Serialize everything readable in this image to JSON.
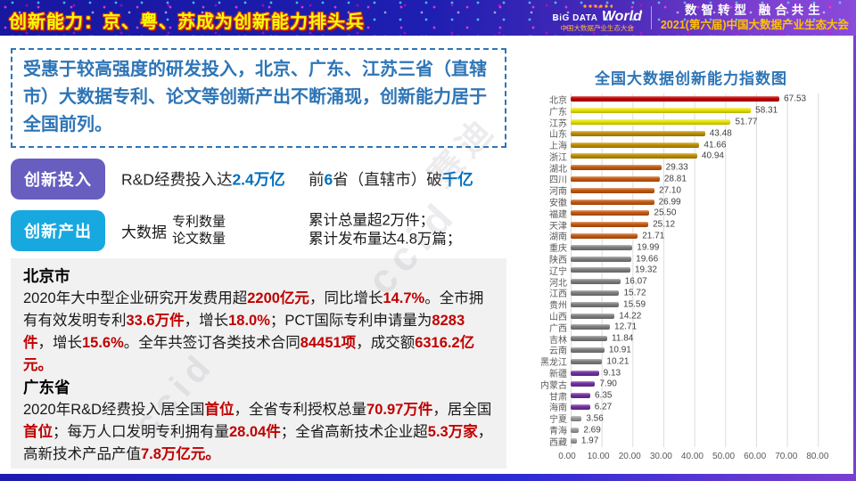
{
  "header": {
    "title": "创新能力：京、粤、苏成为创新能力排头兵",
    "logo": {
      "big": "BiG DATA",
      "world": "World",
      "sub": "中国大数据产业生态大会"
    },
    "slogan": "数智转型 融合共生",
    "event": "2021(第六届)中国大数据产业生态大会"
  },
  "intro": {
    "text": "受惠于较高强度的研发投入，北京、广东、江苏三省（直辖市）大数据专利、论文等创新产出不断涌现，创新能力居于全国前列。"
  },
  "investment": {
    "label": "创新投入",
    "line1": [
      {
        "t": "R&D经费投入达"
      },
      {
        "t": "2.4万亿",
        "c": "blue"
      }
    ],
    "line2": [
      {
        "t": "前"
      },
      {
        "t": "6",
        "c": "blue"
      },
      {
        "t": "省（直辖市）破"
      },
      {
        "t": "千亿",
        "c": "blue"
      }
    ]
  },
  "output": {
    "label": "创新产出",
    "prefix": "大数据",
    "items": [
      "专利数量",
      "论文数量"
    ],
    "results": [
      "累计总量超2万件；",
      "累计发布量达4.8万篇；"
    ]
  },
  "details": {
    "beijing": {
      "title": "北京市",
      "segments": [
        {
          "t": "2020年大中型企业研究开发费用超"
        },
        {
          "t": "2200亿元",
          "c": "red"
        },
        {
          "t": "，同比增长"
        },
        {
          "t": "14.7%",
          "c": "red"
        },
        {
          "t": "。全市拥有有效发明专利"
        },
        {
          "t": "33.6万件",
          "c": "red"
        },
        {
          "t": "，增长"
        },
        {
          "t": "18.0%",
          "c": "red"
        },
        {
          "t": "；PCT国际专利申请量为"
        },
        {
          "t": "8283件",
          "c": "red"
        },
        {
          "t": "，增长"
        },
        {
          "t": "15.6%",
          "c": "red"
        },
        {
          "t": "。全年共签订各类技术合同"
        },
        {
          "t": "84451项",
          "c": "red"
        },
        {
          "t": "，成交额"
        },
        {
          "t": "6316.2亿元。",
          "c": "red"
        }
      ]
    },
    "guangdong": {
      "title": "广东省",
      "segments": [
        {
          "t": "2020年R&D经费投入居全国"
        },
        {
          "t": "首位",
          "c": "red"
        },
        {
          "t": "，全省专利授权总量"
        },
        {
          "t": "70.97万件",
          "c": "red"
        },
        {
          "t": "，居全国"
        },
        {
          "t": "首位",
          "c": "red"
        },
        {
          "t": "；每万人口发明专利拥有量"
        },
        {
          "t": "28.04件",
          "c": "red"
        },
        {
          "t": "；全省高新技术企业超"
        },
        {
          "t": "5.3万家",
          "c": "red"
        },
        {
          "t": "，高新技术产品产值"
        },
        {
          "t": "7.8万亿元。",
          "c": "red"
        }
      ]
    }
  },
  "chart_data": {
    "type": "bar",
    "orientation": "horizontal",
    "title": "全国大数据创新能力指数图",
    "categories": [
      "北京",
      "广东",
      "江苏",
      "山东",
      "上海",
      "浙江",
      "湖北",
      "四川",
      "河南",
      "安徽",
      "福建",
      "天津",
      "湖南",
      "重庆",
      "陕西",
      "辽宁",
      "河北",
      "江西",
      "贵州",
      "山西",
      "广西",
      "吉林",
      "云南",
      "黑龙江",
      "新疆",
      "内蒙古",
      "甘肃",
      "海南",
      "宁夏",
      "青海",
      "西藏"
    ],
    "values": [
      67.53,
      58.31,
      51.77,
      43.48,
      41.66,
      40.94,
      29.33,
      28.81,
      27.1,
      26.99,
      25.5,
      25.12,
      21.71,
      19.99,
      19.66,
      19.32,
      16.07,
      15.72,
      15.59,
      14.22,
      12.71,
      11.84,
      10.91,
      10.21,
      9.13,
      7.9,
      6.35,
      6.27,
      3.56,
      2.69,
      1.97
    ],
    "value_labels": [
      "67.53",
      "58.31",
      "51.77",
      "43.48",
      "41.66",
      "40.94",
      "29.33",
      "28.81",
      "27.10",
      "26.99",
      "25.50",
      "25.12",
      "21.71",
      "19.99",
      "19.66",
      "19.32",
      "16.07",
      "15.72",
      "15.59",
      "14.22",
      "12.71",
      "11.84",
      "10.91",
      "10.21",
      "9.13",
      "7.90",
      "6.35",
      "6.27",
      "3.56",
      "2.69",
      "1.97"
    ],
    "bar_colors": [
      "#C00000",
      "#E8E400",
      "#E8E400",
      "#BF8F00",
      "#BF8F00",
      "#BF8F00",
      "#C55A11",
      "#C55A11",
      "#C55A11",
      "#C55A11",
      "#C55A11",
      "#C55A11",
      "#C55A11",
      "#7F7F7F",
      "#7F7F7F",
      "#7F7F7F",
      "#7F7F7F",
      "#7F7F7F",
      "#7F7F7F",
      "#7F7F7F",
      "#7F7F7F",
      "#7F7F7F",
      "#7F7F7F",
      "#7F7F7F",
      "#7030A0",
      "#7030A0",
      "#7030A0",
      "#7030A0",
      "#9A9A9A",
      "#9A9A9A",
      "#9A9A9A"
    ],
    "xlim": [
      0,
      90
    ],
    "x_ticks": [
      "0.00",
      "10.00",
      "20.00",
      "30.00",
      "40.00",
      "50.00",
      "60.00",
      "70.00",
      "80.00"
    ],
    "grid": true,
    "legend": false
  },
  "watermark": {
    "text1": "ccid",
    "text2": "赛迪"
  },
  "colors": {
    "title_yellow": "#F4FF00",
    "title_outline": "#D8321E",
    "accent_blue": "#2E75B6",
    "highlight_blue": "#0070C0",
    "highlight_red": "#C00000",
    "button_purple": "#675EC0",
    "button_cyan": "#18A8E0",
    "header_blue": "#1B1BAA",
    "header_purple": "#7B3FD0",
    "gray_box_bg": "#F1F1F1",
    "event_gold": "#FFC000"
  }
}
